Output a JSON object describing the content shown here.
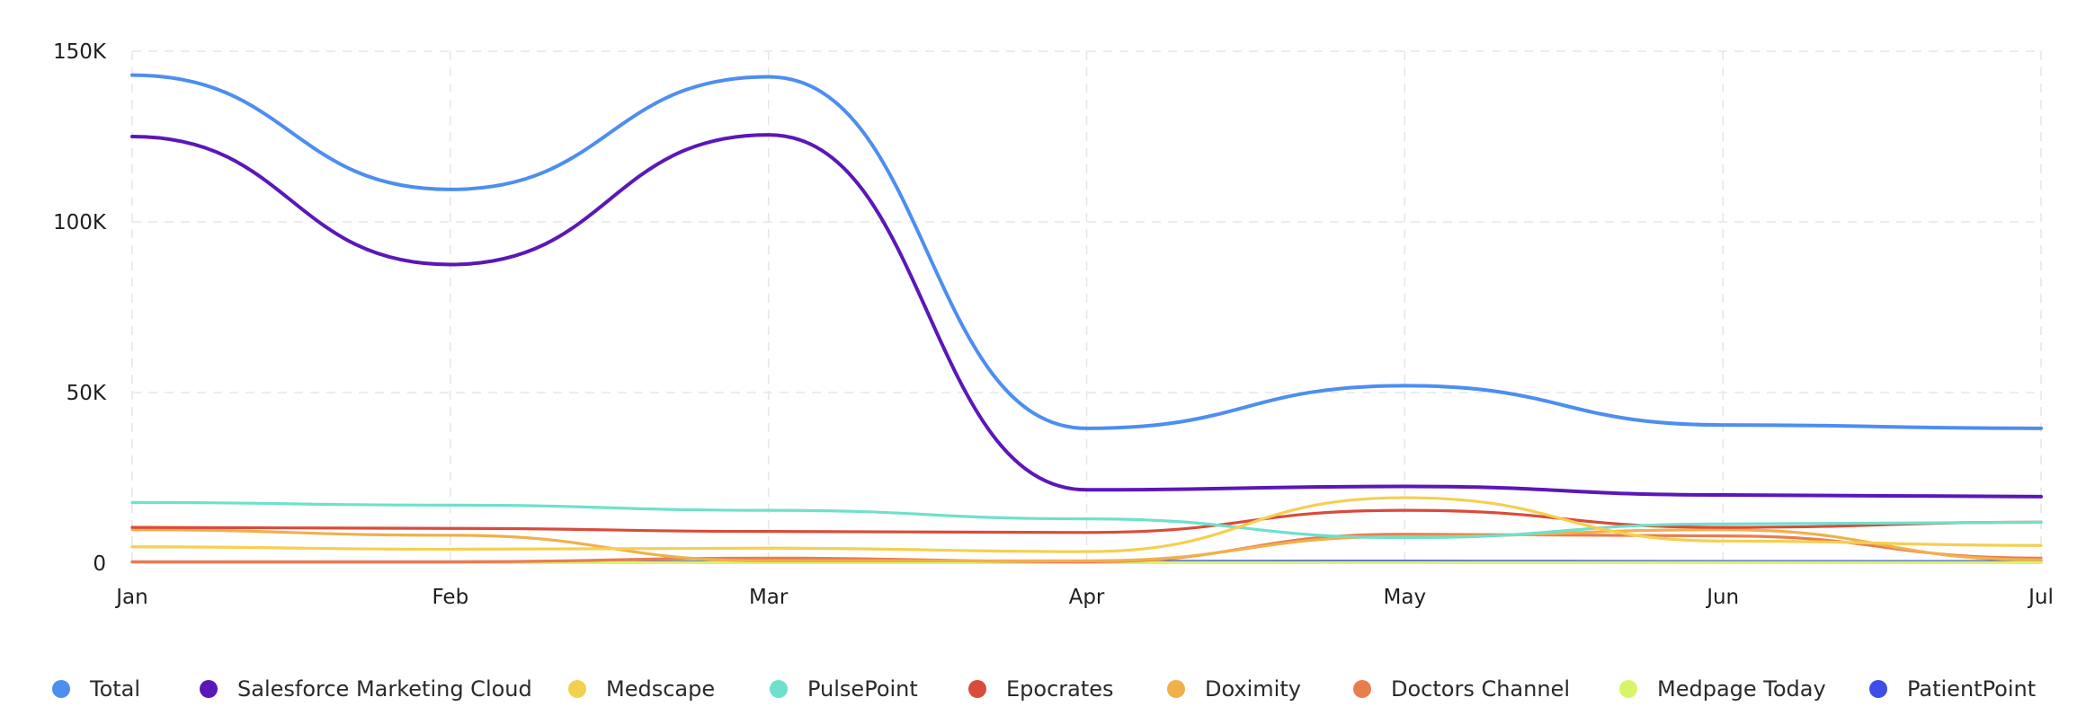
{
  "chart_data": {
    "type": "line",
    "x": [
      "Jan",
      "Feb",
      "Mar",
      "Apr",
      "May",
      "Jun",
      "Jul"
    ],
    "ylim": [
      0,
      150000
    ],
    "yticks": [
      {
        "value": 0,
        "label": "0"
      },
      {
        "value": 50000,
        "label": "50K"
      },
      {
        "value": 100000,
        "label": "100K"
      },
      {
        "value": 150000,
        "label": "150K"
      }
    ],
    "grid": true,
    "legend_position": "bottom",
    "series": [
      {
        "name": "Total",
        "color": "#4d8ef0",
        "values": [
          143000,
          109500,
          142500,
          39500,
          52000,
          40500,
          39500
        ]
      },
      {
        "name": "Salesforce Marketing Cloud",
        "color": "#5b17b8",
        "values": [
          125000,
          87500,
          125500,
          21500,
          22500,
          20000,
          19500
        ]
      },
      {
        "name": "Medscape",
        "color": "#f5cf4f",
        "values": [
          4800,
          4100,
          4400,
          3400,
          19200,
          6500,
          5200
        ]
      },
      {
        "name": "PulsePoint",
        "color": "#6fe0cb",
        "values": [
          17800,
          17000,
          15500,
          13000,
          7500,
          11500,
          12000
        ]
      },
      {
        "name": "Epocrates",
        "color": "#d94b3b",
        "values": [
          10500,
          10200,
          9300,
          9000,
          15500,
          10500,
          12000
        ]
      },
      {
        "name": "Doximity",
        "color": "#f0b04b",
        "values": [
          9800,
          8200,
          700,
          700,
          7800,
          9800,
          1000
        ]
      },
      {
        "name": "Doctors Channel",
        "color": "#ea7d4e",
        "values": [
          400,
          400,
          1500,
          400,
          8500,
          8000,
          1500
        ]
      },
      {
        "name": "Medpage Today",
        "color": "#d8f56a",
        "values": [
          200,
          200,
          200,
          200,
          200,
          200,
          200
        ]
      },
      {
        "name": "PatientPoint",
        "color": "#3d4ee8",
        "values": [
          400,
          400,
          400,
          500,
          600,
          500,
          500
        ]
      }
    ]
  }
}
